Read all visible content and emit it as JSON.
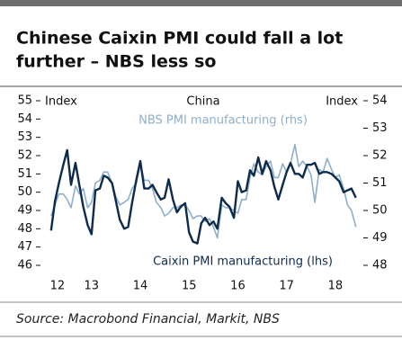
{
  "chart_data": {
    "type": "line",
    "title_lines": [
      "Chinese Caixin PMI could fall a lot",
      "further – NBS less so"
    ],
    "chart_title": "China",
    "y_label": "Index",
    "y2_label": "Index",
    "source": "Source: Macrobond Financial, Markit, NBS",
    "annotations": [
      "NBS PMI manufacturing (rhs)",
      "Caixin PMI manufacturing (lhs)"
    ],
    "x": [
      2012.67,
      2012.75,
      2012.83,
      2012.92,
      2013.0,
      2013.08,
      2013.17,
      2013.25,
      2013.33,
      2013.42,
      2013.5,
      2013.58,
      2013.67,
      2013.75,
      2013.83,
      2013.92,
      2014.0,
      2014.08,
      2014.17,
      2014.25,
      2014.33,
      2014.42,
      2014.5,
      2014.58,
      2014.67,
      2014.75,
      2014.83,
      2014.92,
      2015.0,
      2015.08,
      2015.17,
      2015.25,
      2015.33,
      2015.42,
      2015.5,
      2015.58,
      2015.67,
      2015.75,
      2015.83,
      2015.92,
      2016.0,
      2016.08,
      2016.17,
      2016.25,
      2016.33,
      2016.42,
      2016.5,
      2016.58,
      2016.67,
      2016.75,
      2016.83,
      2016.92,
      2017.0,
      2017.08,
      2017.17,
      2017.25,
      2017.33,
      2017.42,
      2017.5,
      2017.58,
      2017.67,
      2017.75,
      2017.83,
      2017.92,
      2018.0,
      2018.08,
      2018.17,
      2018.25,
      2018.33,
      2018.42,
      2018.5,
      2018.58,
      2018.67,
      2018.75,
      2018.83,
      2018.92
    ],
    "series": [
      {
        "name": "Caixin PMI manufacturing (lhs)",
        "color": "#0d2b4b",
        "axis": "y",
        "values": [
          47.9,
          49.5,
          50.5,
          51.5,
          52.3,
          50.4,
          51.6,
          50.4,
          49.2,
          48.2,
          47.7,
          50.1,
          50.2,
          50.9,
          50.8,
          50.5,
          49.5,
          48.5,
          48.0,
          48.1,
          49.4,
          50.7,
          51.7,
          50.2,
          50.2,
          50.4,
          50.0,
          49.6,
          49.7,
          50.7,
          49.6,
          48.9,
          49.2,
          49.4,
          47.8,
          47.3,
          47.2,
          48.3,
          48.6,
          48.2,
          48.4,
          48.0,
          49.7,
          49.4,
          49.2,
          48.6,
          50.6,
          50.0,
          50.1,
          51.2,
          50.9,
          51.9,
          51.0,
          51.7,
          51.2,
          50.3,
          49.6,
          50.4,
          51.1,
          51.6,
          51.0,
          51.0,
          50.8,
          51.5,
          51.5,
          51.6,
          51.0,
          51.1,
          51.1,
          51.0,
          50.8,
          50.6,
          50.0,
          50.1,
          50.2,
          49.7
        ]
      },
      {
        "name": "NBS PMI manufacturing (rhs)",
        "color": "#8eafcb",
        "axis": "y2",
        "values": [
          49.8,
          50.2,
          50.6,
          50.6,
          50.4,
          50.1,
          50.9,
          50.6,
          50.8,
          50.1,
          50.3,
          51.0,
          51.1,
          51.4,
          51.4,
          51.0,
          50.5,
          50.2,
          50.3,
          50.4,
          50.8,
          51.0,
          51.7,
          51.1,
          51.1,
          50.8,
          50.3,
          50.1,
          49.8,
          49.9,
          50.1,
          50.1,
          50.2,
          50.2,
          50.0,
          49.7,
          49.8,
          49.8,
          49.6,
          49.7,
          49.4,
          49.0,
          50.2,
          50.1,
          50.1,
          50.0,
          49.9,
          50.4,
          50.4,
          51.2,
          51.7,
          51.4,
          51.3,
          51.6,
          51.8,
          51.2,
          51.2,
          51.7,
          51.4,
          51.7,
          52.4,
          51.6,
          51.8,
          51.6,
          51.3,
          50.3,
          51.5,
          51.4,
          51.9,
          51.5,
          51.2,
          51.3,
          50.8,
          50.2,
          50.0,
          49.4
        ]
      }
    ],
    "xlim": [
      2012.6,
      2019.0
    ],
    "xticks": [
      {
        "value": 2012.8,
        "label": "12"
      },
      {
        "value": 2013.5,
        "label": "13"
      },
      {
        "value": 2014.5,
        "label": "14"
      },
      {
        "value": 2015.5,
        "label": "15"
      },
      {
        "value": 2016.5,
        "label": "16"
      },
      {
        "value": 2017.5,
        "label": "17"
      },
      {
        "value": 2018.5,
        "label": "18"
      }
    ],
    "ylim": [
      46,
      55
    ],
    "yticks": [
      46,
      47,
      48,
      49,
      50,
      51,
      52,
      53,
      54,
      55
    ],
    "y2lim": [
      48,
      54
    ],
    "y2ticks": [
      48,
      49,
      50,
      51,
      52,
      53,
      54
    ],
    "grid": false
  }
}
